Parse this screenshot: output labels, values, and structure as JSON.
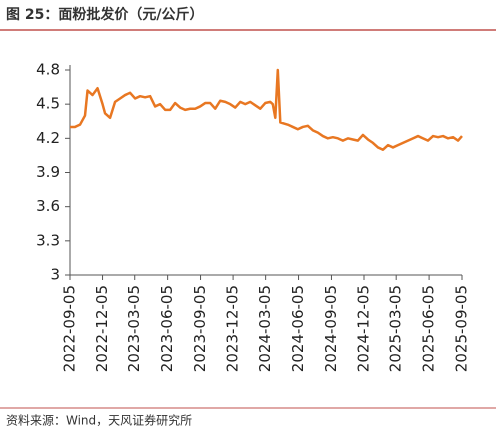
{
  "chart_data": {
    "type": "line",
    "title": "图 25：面粉批发价（元/公斤）",
    "source": "资料来源：Wind，天风证券研究所",
    "x": [
      "2022-09-05",
      "2022-09-19",
      "2022-10-03",
      "2022-10-17",
      "2022-10-24",
      "2022-11-07",
      "2022-11-21",
      "2022-12-05",
      "2022-12-12",
      "2022-12-26",
      "2023-01-09",
      "2023-01-23",
      "2023-02-06",
      "2023-02-20",
      "2023-03-06",
      "2023-03-20",
      "2023-04-03",
      "2023-04-17",
      "2023-05-01",
      "2023-05-15",
      "2023-05-29",
      "2023-06-12",
      "2023-06-26",
      "2023-07-10",
      "2023-07-24",
      "2023-08-07",
      "2023-08-21",
      "2023-09-04",
      "2023-09-18",
      "2023-10-02",
      "2023-10-16",
      "2023-10-30",
      "2023-11-13",
      "2023-11-27",
      "2023-12-11",
      "2023-12-25",
      "2024-01-08",
      "2024-01-22",
      "2024-02-05",
      "2024-02-19",
      "2024-03-04",
      "2024-03-18",
      "2024-03-25",
      "2024-04-01",
      "2024-04-08",
      "2024-04-15",
      "2024-05-06",
      "2024-05-20",
      "2024-06-03",
      "2024-06-17",
      "2024-07-01",
      "2024-07-15",
      "2024-07-29",
      "2024-08-12",
      "2024-08-26",
      "2024-09-09",
      "2024-09-23",
      "2024-10-07",
      "2024-10-21",
      "2024-11-04",
      "2024-11-18",
      "2024-12-02",
      "2024-12-16",
      "2024-12-30",
      "2025-01-13",
      "2025-01-27",
      "2025-02-10",
      "2025-02-24",
      "2025-03-10",
      "2025-03-24",
      "2025-04-07",
      "2025-04-21",
      "2025-05-05",
      "2025-05-19",
      "2025-06-02",
      "2025-06-16",
      "2025-06-30",
      "2025-07-14",
      "2025-07-28",
      "2025-08-11",
      "2025-08-25",
      "2025-09-05"
    ],
    "series": [
      {
        "name": "面粉批发价",
        "color": "#e87722",
        "values": [
          4.3,
          4.3,
          4.32,
          4.4,
          4.62,
          4.58,
          4.64,
          4.5,
          4.42,
          4.38,
          4.52,
          4.55,
          4.58,
          4.6,
          4.55,
          4.57,
          4.56,
          4.57,
          4.48,
          4.5,
          4.45,
          4.45,
          4.51,
          4.47,
          4.45,
          4.46,
          4.46,
          4.48,
          4.51,
          4.51,
          4.46,
          4.53,
          4.52,
          4.5,
          4.47,
          4.52,
          4.5,
          4.52,
          4.49,
          4.46,
          4.51,
          4.52,
          4.5,
          4.38,
          4.8,
          4.34,
          4.32,
          4.3,
          4.28,
          4.3,
          4.31,
          4.27,
          4.25,
          4.22,
          4.2,
          4.21,
          4.2,
          4.18,
          4.2,
          4.19,
          4.18,
          4.23,
          4.19,
          4.16,
          4.12,
          4.1,
          4.14,
          4.12,
          4.14,
          4.16,
          4.18,
          4.2,
          4.22,
          4.2,
          4.18,
          4.22,
          4.21,
          4.22,
          4.2,
          4.21,
          4.18,
          4.22
        ]
      }
    ],
    "xlim": [
      "2022-09-05",
      "2025-09-05"
    ],
    "xticks": [
      "2022-09-05",
      "2022-12-05",
      "2023-03-05",
      "2023-06-05",
      "2023-09-05",
      "2023-12-05",
      "2024-03-05",
      "2024-06-05",
      "2024-09-05",
      "2024-12-05",
      "2025-03-05",
      "2025-06-05",
      "2025-09-05"
    ],
    "ylim": [
      3,
      4.8
    ],
    "yticks": [
      3,
      3.3,
      3.6,
      3.9,
      4.2,
      4.5,
      4.8
    ],
    "grid": false
  }
}
